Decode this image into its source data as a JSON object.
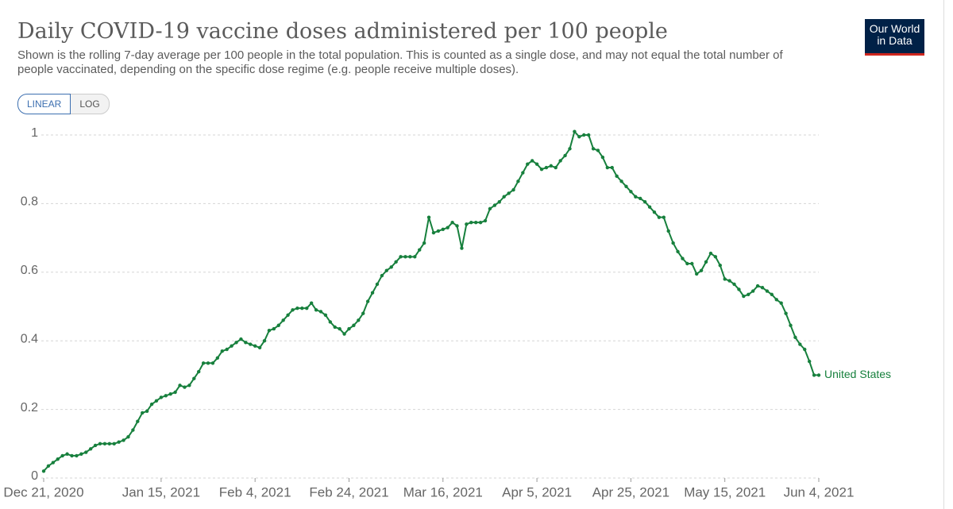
{
  "chart_data": {
    "type": "line",
    "title": "Daily COVID-19 vaccine doses administered per 100 people",
    "subtitle": "Shown is the rolling 7-day average per 100 people in the total population. This is counted as a single dose, and may not equal the total number of people vaccinated, depending on the specific dose regime (e.g. people receive multiple doses).",
    "logo": [
      "Our World",
      "in Data"
    ],
    "scale_buttons": [
      "LINEAR",
      "LOG"
    ],
    "scale": "linear",
    "grid": true,
    "x": [
      "2020-12-21",
      "2020-12-22",
      "2020-12-23",
      "2020-12-24",
      "2020-12-25",
      "2020-12-26",
      "2020-12-27",
      "2020-12-28",
      "2020-12-29",
      "2020-12-30",
      "2020-12-31",
      "2021-01-01",
      "2021-01-02",
      "2021-01-03",
      "2021-01-04",
      "2021-01-05",
      "2021-01-06",
      "2021-01-07",
      "2021-01-08",
      "2021-01-09",
      "2021-01-10",
      "2021-01-11",
      "2021-01-12",
      "2021-01-13",
      "2021-01-14",
      "2021-01-15",
      "2021-01-16",
      "2021-01-17",
      "2021-01-18",
      "2021-01-19",
      "2021-01-20",
      "2021-01-21",
      "2021-01-22",
      "2021-01-23",
      "2021-01-24",
      "2021-01-25",
      "2021-01-26",
      "2021-01-27",
      "2021-01-28",
      "2021-01-29",
      "2021-01-30",
      "2021-01-31",
      "2021-02-01",
      "2021-02-02",
      "2021-02-03",
      "2021-02-04",
      "2021-02-05",
      "2021-02-06",
      "2021-02-07",
      "2021-02-08",
      "2021-02-09",
      "2021-02-10",
      "2021-02-11",
      "2021-02-12",
      "2021-02-13",
      "2021-02-14",
      "2021-02-15",
      "2021-02-16",
      "2021-02-17",
      "2021-02-18",
      "2021-02-19",
      "2021-02-20",
      "2021-02-21",
      "2021-02-22",
      "2021-02-23",
      "2021-02-24",
      "2021-02-25",
      "2021-02-26",
      "2021-02-27",
      "2021-02-28",
      "2021-03-01",
      "2021-03-02",
      "2021-03-03",
      "2021-03-04",
      "2021-03-05",
      "2021-03-06",
      "2021-03-07",
      "2021-03-08",
      "2021-03-09",
      "2021-03-10",
      "2021-03-11",
      "2021-03-12",
      "2021-03-13",
      "2021-03-14",
      "2021-03-15",
      "2021-03-16",
      "2021-03-17",
      "2021-03-18",
      "2021-03-19",
      "2021-03-20",
      "2021-03-21",
      "2021-03-22",
      "2021-03-23",
      "2021-03-24",
      "2021-03-25",
      "2021-03-26",
      "2021-03-27",
      "2021-03-28",
      "2021-03-29",
      "2021-03-30",
      "2021-03-31",
      "2021-04-01",
      "2021-04-02",
      "2021-04-03",
      "2021-04-04",
      "2021-04-05",
      "2021-04-06",
      "2021-04-07",
      "2021-04-08",
      "2021-04-09",
      "2021-04-10",
      "2021-04-11",
      "2021-04-12",
      "2021-04-13",
      "2021-04-14",
      "2021-04-15",
      "2021-04-16",
      "2021-04-17",
      "2021-04-18",
      "2021-04-19",
      "2021-04-20",
      "2021-04-21",
      "2021-04-22",
      "2021-04-23",
      "2021-04-24",
      "2021-04-25",
      "2021-04-26",
      "2021-04-27",
      "2021-04-28",
      "2021-04-29",
      "2021-04-30",
      "2021-05-01",
      "2021-05-02",
      "2021-05-03",
      "2021-05-04",
      "2021-05-05",
      "2021-05-06",
      "2021-05-07",
      "2021-05-08",
      "2021-05-09",
      "2021-05-10",
      "2021-05-11",
      "2021-05-12",
      "2021-05-13",
      "2021-05-14",
      "2021-05-15",
      "2021-05-16",
      "2021-05-17",
      "2021-05-18",
      "2021-05-19",
      "2021-05-20",
      "2021-05-21",
      "2021-05-22",
      "2021-05-23",
      "2021-05-24",
      "2021-05-25",
      "2021-05-26",
      "2021-05-27",
      "2021-05-28",
      "2021-05-29",
      "2021-05-30",
      "2021-05-31",
      "2021-06-01",
      "2021-06-02",
      "2021-06-03",
      "2021-06-04"
    ],
    "series": [
      {
        "name": "United States",
        "color": "#17803d",
        "values": [
          0.02,
          0.035,
          0.045,
          0.055,
          0.065,
          0.07,
          0.065,
          0.065,
          0.07,
          0.075,
          0.085,
          0.095,
          0.1,
          0.1,
          0.1,
          0.1,
          0.105,
          0.11,
          0.12,
          0.14,
          0.165,
          0.19,
          0.195,
          0.215,
          0.225,
          0.235,
          0.24,
          0.245,
          0.25,
          0.27,
          0.265,
          0.27,
          0.29,
          0.31,
          0.335,
          0.335,
          0.335,
          0.35,
          0.37,
          0.375,
          0.385,
          0.395,
          0.405,
          0.395,
          0.39,
          0.385,
          0.38,
          0.4,
          0.43,
          0.435,
          0.445,
          0.46,
          0.475,
          0.49,
          0.495,
          0.495,
          0.495,
          0.51,
          0.49,
          0.485,
          0.475,
          0.455,
          0.44,
          0.435,
          0.42,
          0.435,
          0.445,
          0.46,
          0.48,
          0.515,
          0.54,
          0.565,
          0.59,
          0.605,
          0.615,
          0.63,
          0.645,
          0.645,
          0.645,
          0.645,
          0.665,
          0.685,
          0.76,
          0.715,
          0.72,
          0.725,
          0.73,
          0.745,
          0.735,
          0.67,
          0.74,
          0.745,
          0.745,
          0.745,
          0.75,
          0.785,
          0.795,
          0.805,
          0.82,
          0.83,
          0.84,
          0.865,
          0.89,
          0.915,
          0.925,
          0.915,
          0.9,
          0.905,
          0.91,
          0.905,
          0.925,
          0.94,
          0.96,
          1.01,
          0.995,
          1.0,
          1.0,
          0.96,
          0.955,
          0.935,
          0.905,
          0.905,
          0.88,
          0.865,
          0.85,
          0.835,
          0.82,
          0.815,
          0.805,
          0.79,
          0.775,
          0.76,
          0.76,
          0.72,
          0.685,
          0.66,
          0.64,
          0.625,
          0.625,
          0.595,
          0.605,
          0.63,
          0.655,
          0.645,
          0.62,
          0.58,
          0.575,
          0.565,
          0.55,
          0.53,
          0.535,
          0.545,
          0.56,
          0.555,
          0.545,
          0.535,
          0.52,
          0.51,
          0.48,
          0.445,
          0.41,
          0.39,
          0.375,
          0.34,
          0.3,
          0.3
        ]
      }
    ],
    "xlim": [
      "2020-12-21",
      "2021-06-04"
    ],
    "xticks": [
      {
        "value": "2020-12-21",
        "label": "Dec 21, 2020"
      },
      {
        "value": "2021-01-15",
        "label": "Jan 15, 2021"
      },
      {
        "value": "2021-02-04",
        "label": "Feb 4, 2021"
      },
      {
        "value": "2021-02-24",
        "label": "Feb 24, 2021"
      },
      {
        "value": "2021-03-16",
        "label": "Mar 16, 2021"
      },
      {
        "value": "2021-04-05",
        "label": "Apr 5, 2021"
      },
      {
        "value": "2021-04-25",
        "label": "Apr 25, 2021"
      },
      {
        "value": "2021-05-15",
        "label": "May 15, 2021"
      },
      {
        "value": "2021-06-04",
        "label": "Jun 4, 2021"
      }
    ],
    "ylim": [
      0,
      1
    ],
    "yticks": [
      0,
      0.2,
      0.4,
      0.6,
      0.8,
      1
    ]
  }
}
